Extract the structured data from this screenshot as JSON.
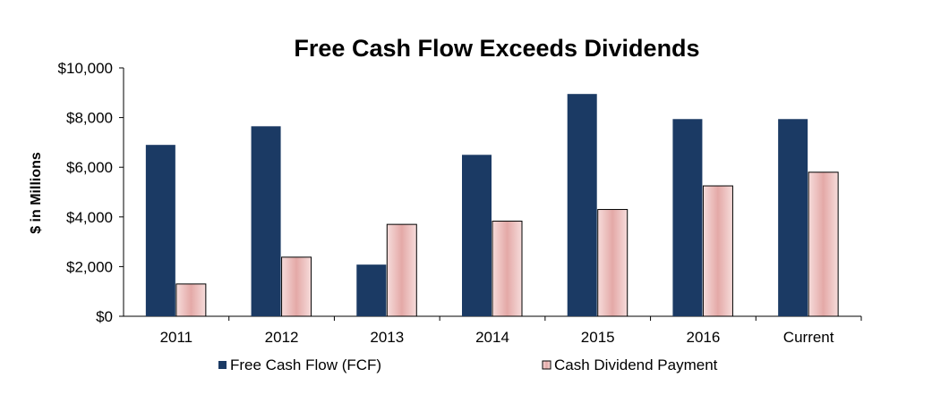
{
  "chart_data": {
    "type": "bar",
    "title": "Free Cash Flow Exceeds Dividends",
    "xlabel": "",
    "ylabel": "$ in Millions",
    "categories": [
      "2011",
      "2012",
      "2013",
      "2014",
      "2015",
      "2016",
      "Current"
    ],
    "series": [
      {
        "name": "Free Cash Flow (FCF)",
        "color": "#1b3a64",
        "style": "solid",
        "values": [
          6900,
          7650,
          2080,
          6500,
          8950,
          7940,
          7940
        ]
      },
      {
        "name": "Cash Dividend Payment",
        "color": "#e6afad",
        "style": "gradient",
        "values": [
          1300,
          2380,
          3700,
          3830,
          4300,
          5250,
          5800
        ]
      }
    ],
    "ylim": [
      0,
      10000
    ],
    "yticks": [
      0,
      2000,
      4000,
      6000,
      8000,
      10000
    ],
    "ytick_labels": [
      "$0",
      "$2,000",
      "$4,000",
      "$6,000",
      "$8,000",
      "$10,000"
    ],
    "grid": false,
    "legend_position": "bottom"
  }
}
